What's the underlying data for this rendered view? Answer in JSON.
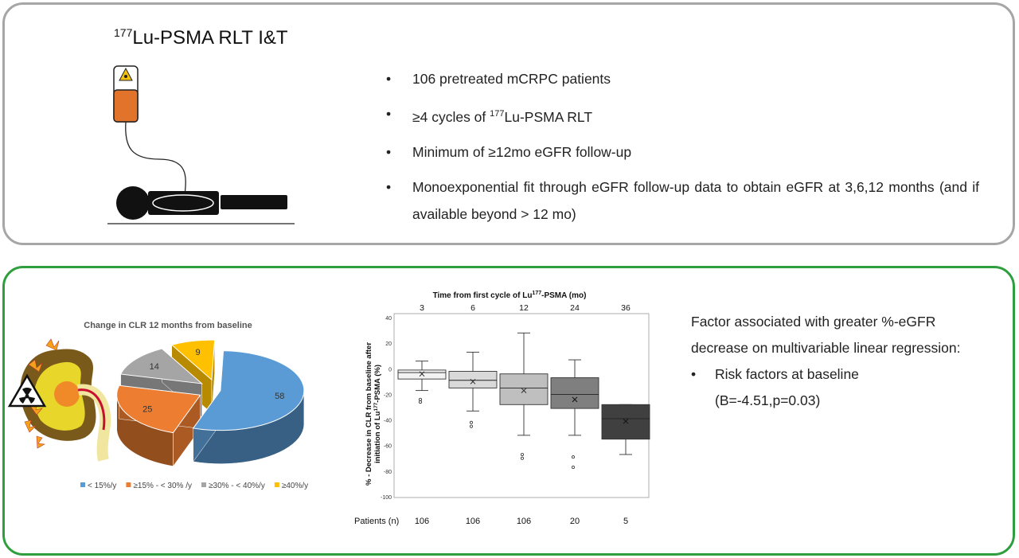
{
  "top": {
    "title_sup": "177",
    "title_main": "Lu-PSMA RLT I&T",
    "bullets": [
      {
        "pre": "106 pretreated mCRPC patients",
        "sup": "",
        "post": ""
      },
      {
        "pre": "≥4 cycles of ",
        "sup": "177",
        "post": "Lu-PSMA RLT"
      },
      {
        "pre": "Minimum of ≥12mo eGFR follow-up",
        "sup": "",
        "post": ""
      },
      {
        "pre": "Monoexponential fit through eGFR follow-up data to obtain eGFR at 3,6,12 months (and if available beyond > 12 mo)",
        "sup": "",
        "post": ""
      }
    ]
  },
  "pie": {
    "title": "Change in CLR 12 months from baseline",
    "slices": [
      {
        "label": "< 15%/y",
        "value": 58,
        "color": "#5b9bd5"
      },
      {
        "label": "≥15% - < 30% /y",
        "value": 25,
        "color": "#ed7d31"
      },
      {
        "label": "≥30% - < 40%/y",
        "value": 14,
        "color": "#a5a5a5"
      },
      {
        "label": "≥40%/y",
        "value": 9,
        "color": "#ffc000"
      }
    ]
  },
  "chart_data": {
    "type": "box",
    "title": "Time from first cycle of Lu177-PSMA (mo)",
    "title_pre": "Time from first cycle of Lu",
    "title_sup": "177",
    "title_post": "-PSMA (mo)",
    "ylabel_line1": "% - Decrease in CLR from baseline after",
    "ylabel_line2_pre": "initiation of Lu",
    "ylabel_line2_sup": "177",
    "ylabel_line2_post": "-PSMA (%)",
    "ylim": [
      -100,
      40
    ],
    "yticks": [
      40,
      20,
      0,
      -20,
      -40,
      -60,
      -80,
      -100
    ],
    "patients_label": "Patients (n)",
    "categories": [
      "3",
      "6",
      "12",
      "24",
      "36"
    ],
    "patients": [
      "106",
      "106",
      "106",
      "20",
      "5"
    ],
    "boxes": [
      {
        "min": -17,
        "q1": -8,
        "median": -3,
        "q3": -1,
        "max": 6,
        "mean": -4,
        "outliers": [
          -24,
          -26
        ],
        "color": "#f2f2f2"
      },
      {
        "min": -33,
        "q1": -15,
        "median": -9,
        "q3": -2,
        "max": 13,
        "mean": -10,
        "outliers": [
          -42,
          -45
        ],
        "color": "#d9d9d9"
      },
      {
        "min": -52,
        "q1": -28,
        "median": -15,
        "q3": -4,
        "max": 28,
        "mean": -17,
        "outliers": [
          -67,
          -70
        ],
        "color": "#bfbfbf"
      },
      {
        "min": -52,
        "q1": -31,
        "median": -20,
        "q3": -7,
        "max": 7,
        "mean": -24,
        "outliers": [
          -69,
          -77
        ],
        "color": "#7f7f7f"
      },
      {
        "min": -67,
        "q1": -55,
        "median": -39,
        "q3": -28,
        "max": -28,
        "mean": -41,
        "outliers": [],
        "color": "#404040"
      }
    ]
  },
  "factor": {
    "line1": "Factor associated with greater %-eGFR",
    "line2": "decrease on multivariable linear regression:",
    "bullet": "Risk factors at baseline",
    "stat": "(B=-4.51,p=0.03)"
  }
}
